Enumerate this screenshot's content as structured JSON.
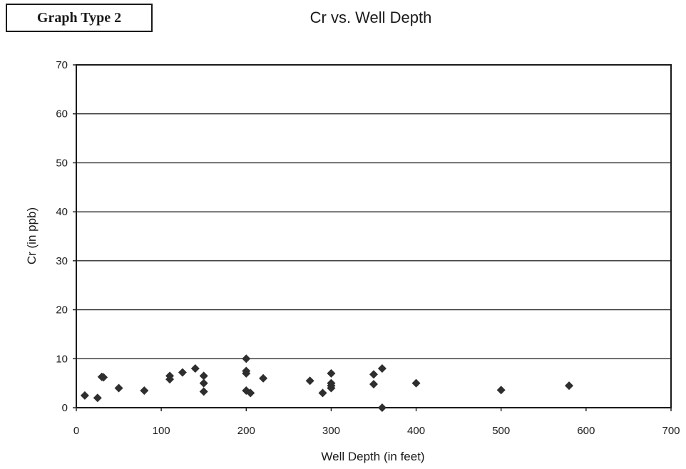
{
  "badge": "Graph Type 2",
  "chart_data": {
    "type": "scatter",
    "title": "Cr vs. Well Depth",
    "xlabel": "Well Depth (in feet)",
    "ylabel": "Cr (in ppb)",
    "xlim": [
      0,
      700
    ],
    "ylim": [
      0,
      70
    ],
    "xticks": [
      0,
      100,
      200,
      300,
      400,
      500,
      600,
      700
    ],
    "yticks": [
      0,
      10,
      20,
      30,
      40,
      50,
      60,
      70
    ],
    "grid": "horizontal",
    "legend": "none",
    "marker": "diamond",
    "color": "#2e2e2e",
    "points": [
      [
        10,
        2.5
      ],
      [
        25,
        2
      ],
      [
        30,
        6.3
      ],
      [
        32,
        6.2
      ],
      [
        50,
        4
      ],
      [
        80,
        3.5
      ],
      [
        110,
        6.5
      ],
      [
        110,
        5.8
      ],
      [
        125,
        7.2
      ],
      [
        140,
        8
      ],
      [
        150,
        6.5
      ],
      [
        150,
        5
      ],
      [
        150,
        3.3
      ],
      [
        200,
        10
      ],
      [
        200,
        7.5
      ],
      [
        200,
        7
      ],
      [
        200,
        3.5
      ],
      [
        205,
        3
      ],
      [
        220,
        6
      ],
      [
        275,
        5.5
      ],
      [
        290,
        3
      ],
      [
        300,
        7
      ],
      [
        300,
        5
      ],
      [
        300,
        4.5
      ],
      [
        300,
        4
      ],
      [
        350,
        6.8
      ],
      [
        350,
        4.8
      ],
      [
        360,
        8
      ],
      [
        360,
        0
      ],
      [
        400,
        5
      ],
      [
        500,
        3.6
      ],
      [
        580,
        4.5
      ]
    ]
  }
}
